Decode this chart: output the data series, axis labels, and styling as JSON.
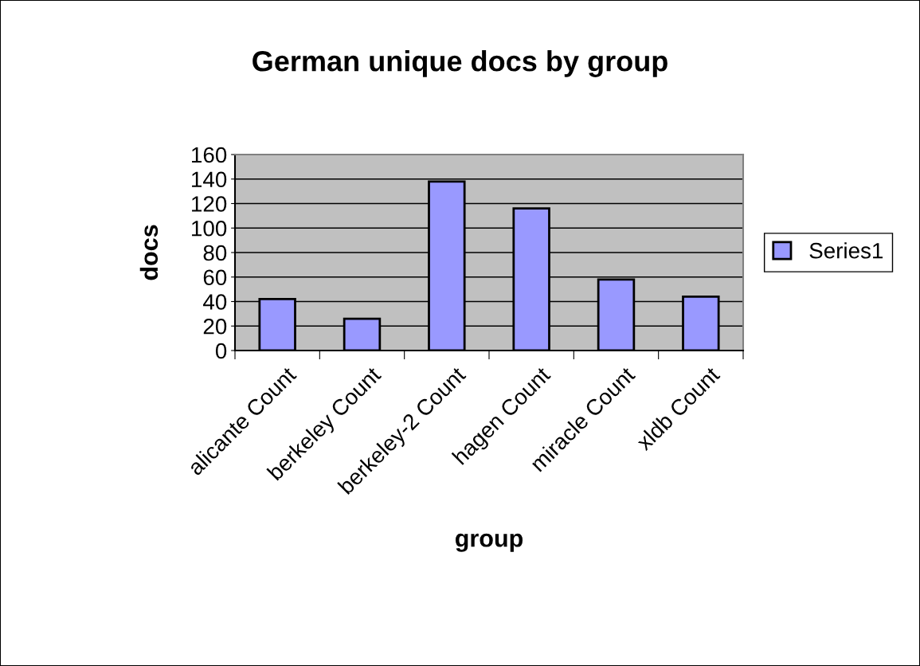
{
  "chart_data": {
    "type": "bar",
    "title": "German unique docs by group",
    "xlabel": "group",
    "ylabel": "docs",
    "categories": [
      "alicante Count",
      "berkeley Count",
      "berkeley-2 Count",
      "hagen Count",
      "miracle Count",
      "xldb Count"
    ],
    "series": [
      {
        "name": "Series1",
        "color": "#9999ff",
        "values": [
          42,
          26,
          138,
          116,
          58,
          44
        ]
      }
    ],
    "ylim": [
      0,
      160
    ],
    "yticks": [
      0,
      20,
      40,
      60,
      80,
      100,
      120,
      140,
      160
    ],
    "grid": "y",
    "legend": "right"
  }
}
